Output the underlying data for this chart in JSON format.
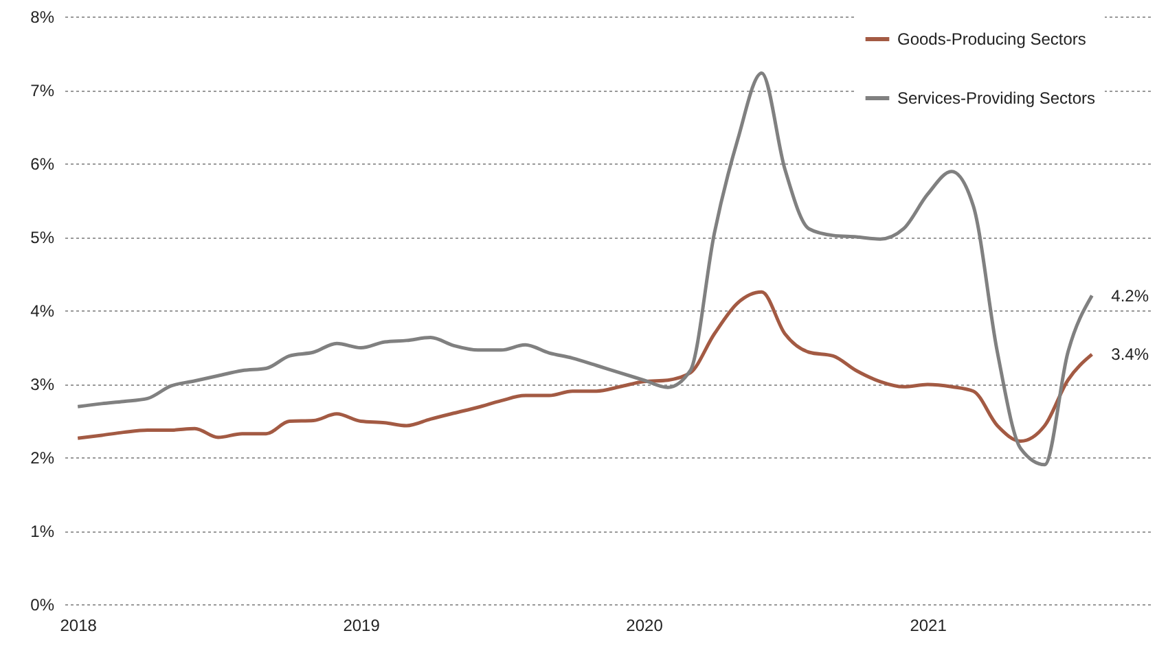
{
  "chart_data": {
    "type": "line",
    "x": [
      "2018-01",
      "2018-02",
      "2018-03",
      "2018-04",
      "2018-05",
      "2018-06",
      "2018-07",
      "2018-08",
      "2018-09",
      "2018-10",
      "2018-11",
      "2018-12",
      "2019-01",
      "2019-02",
      "2019-03",
      "2019-04",
      "2019-05",
      "2019-06",
      "2019-07",
      "2019-08",
      "2019-09",
      "2019-10",
      "2019-11",
      "2019-12",
      "2020-01",
      "2020-02",
      "2020-03",
      "2020-04",
      "2020-05",
      "2020-06",
      "2020-07",
      "2020-08",
      "2020-09",
      "2020-10",
      "2020-11",
      "2020-12",
      "2021-01",
      "2021-02",
      "2021-03",
      "2021-04",
      "2021-05",
      "2021-06",
      "2021-07",
      "2021-08"
    ],
    "series": [
      {
        "name": "Goods-Producing Sectors",
        "color": "#a35a43",
        "values": [
          2.26,
          2.3,
          2.34,
          2.37,
          2.37,
          2.39,
          2.27,
          2.32,
          2.32,
          2.49,
          2.5,
          2.59,
          2.49,
          2.47,
          2.43,
          2.52,
          2.6,
          2.68,
          2.77,
          2.84,
          2.84,
          2.9,
          2.9,
          2.96,
          3.03,
          3.05,
          3.15,
          3.68,
          4.1,
          4.25,
          3.68,
          3.43,
          3.38,
          3.18,
          3.03,
          2.96,
          2.99,
          2.96,
          2.9,
          2.43,
          2.22,
          2.43,
          3.05,
          3.4
        ]
      },
      {
        "name": "Services-Providing Sectors",
        "color": "#808080",
        "values": [
          2.69,
          2.73,
          2.76,
          2.8,
          2.97,
          3.04,
          3.11,
          3.18,
          3.21,
          3.38,
          3.43,
          3.55,
          3.49,
          3.57,
          3.59,
          3.63,
          3.52,
          3.46,
          3.46,
          3.53,
          3.42,
          3.35,
          3.25,
          3.15,
          3.05,
          2.95,
          3.18,
          5.05,
          6.32,
          7.23,
          5.92,
          5.11,
          5.02,
          5.0,
          4.97,
          5.11,
          5.58,
          5.89,
          5.42,
          3.43,
          2.12,
          1.9,
          3.43,
          4.2
        ]
      }
    ],
    "annotations": [
      {
        "text": "4.2%",
        "x": "2021-08",
        "y": 4.2
      },
      {
        "text": "3.4%",
        "x": "2021-08",
        "y": 3.4
      }
    ],
    "xlim": [
      "2017-12-15",
      "2021-10-15"
    ],
    "xticks": [
      "2018",
      "2019",
      "2020",
      "2021"
    ],
    "ylim": [
      0,
      8
    ],
    "yticks": [
      {
        "value": 0,
        "label": "0%"
      },
      {
        "value": 1,
        "label": "1%"
      },
      {
        "value": 2,
        "label": "2%"
      },
      {
        "value": 3,
        "label": "3%"
      },
      {
        "value": 4,
        "label": "4%"
      },
      {
        "value": 5,
        "label": "5%"
      },
      {
        "value": 6,
        "label": "6%"
      },
      {
        "value": 7,
        "label": "7%"
      },
      {
        "value": 8,
        "label": "8%"
      }
    ],
    "grid": "y",
    "legend": "top right",
    "marker": "none",
    "line_style": "solid"
  }
}
